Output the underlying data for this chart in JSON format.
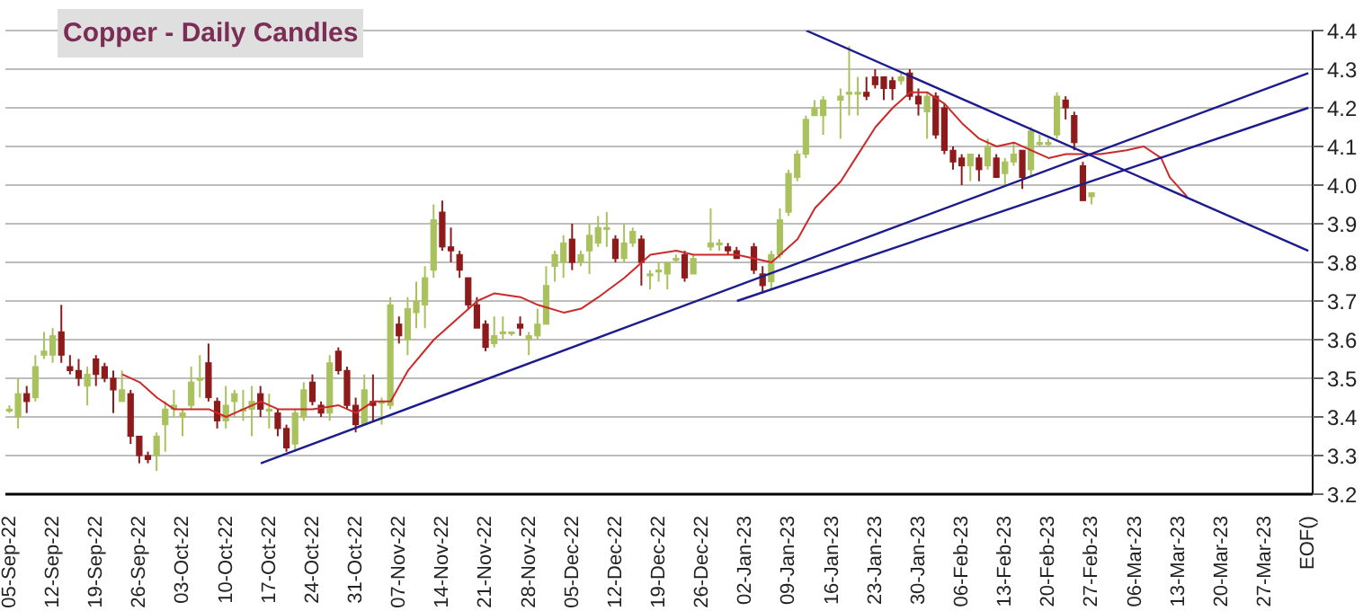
{
  "chart_data": {
    "type": "candlestick",
    "title": "Copper - Daily Candles",
    "categories": [
      "05-Sep-22",
      null,
      null,
      null,
      null,
      "12-Sep-22",
      null,
      null,
      null,
      null,
      "19-Sep-22",
      null,
      null,
      null,
      null,
      "26-Sep-22",
      null,
      null,
      null,
      null,
      "03-Oct-22",
      null,
      null,
      null,
      null,
      "10-Oct-22",
      null,
      null,
      null,
      null,
      "17-Oct-22",
      null,
      null,
      null,
      null,
      "24-Oct-22",
      null,
      null,
      null,
      null,
      "31-Oct-22",
      null,
      null,
      null,
      null,
      "07-Nov-22",
      null,
      null,
      null,
      null,
      "14-Nov-22",
      null,
      null,
      null,
      null,
      "21-Nov-22",
      null,
      null,
      null,
      null,
      "28-Nov-22",
      null,
      null,
      null,
      null,
      "05-Dec-22",
      null,
      null,
      null,
      null,
      "12-Dec-22",
      null,
      null,
      null,
      null,
      "19-Dec-22",
      null,
      null,
      null,
      null,
      "26-Dec-22",
      null,
      null,
      null,
      null,
      "02-Jan-23",
      null,
      null,
      null,
      null,
      "09-Jan-23",
      null,
      null,
      null,
      null,
      "16-Jan-23",
      null,
      null,
      null,
      null,
      "23-Jan-23",
      null,
      null,
      null,
      null,
      "30-Jan-23",
      null,
      null,
      null,
      null,
      "06-Feb-23",
      null,
      null,
      null,
      null,
      "13-Feb-23",
      null,
      null,
      null,
      null,
      "20-Feb-23",
      null,
      null,
      null,
      null,
      "27-Feb-23",
      null,
      null,
      null,
      null,
      "06-Mar-23",
      null,
      null,
      null,
      null,
      "13-Mar-23",
      null,
      null,
      null,
      null,
      "20-Mar-23",
      null,
      null,
      null,
      null,
      "27-Mar-23",
      null,
      null,
      null,
      null,
      "EOF()"
    ],
    "ohlc": [
      [
        3.42,
        3.43,
        3.41,
        3.42
      ],
      [
        3.4,
        3.5,
        3.37,
        3.46
      ],
      [
        3.46,
        3.48,
        3.41,
        3.44
      ],
      [
        3.45,
        3.56,
        3.44,
        3.53
      ],
      [
        3.56,
        3.62,
        3.55,
        3.57
      ],
      [
        3.56,
        3.63,
        3.54,
        3.61
      ],
      [
        3.62,
        3.69,
        3.54,
        3.56
      ],
      [
        3.53,
        3.56,
        3.51,
        3.52
      ],
      [
        3.52,
        3.55,
        3.48,
        3.5
      ],
      [
        3.48,
        3.53,
        3.43,
        3.51
      ],
      [
        3.55,
        3.56,
        3.48,
        3.51
      ],
      [
        3.53,
        3.54,
        3.49,
        3.5
      ],
      [
        3.5,
        3.52,
        3.41,
        3.47
      ],
      [
        3.44,
        3.52,
        3.44,
        3.47
      ],
      [
        3.46,
        3.47,
        3.33,
        3.35
      ],
      [
        3.35,
        3.35,
        3.28,
        3.3
      ],
      [
        3.3,
        3.31,
        3.28,
        3.29
      ],
      [
        3.3,
        3.36,
        3.26,
        3.35
      ],
      [
        3.38,
        3.44,
        3.31,
        3.42
      ],
      [
        3.42,
        3.47,
        3.4,
        3.43
      ],
      [
        3.4,
        3.42,
        3.35,
        3.41
      ],
      [
        3.43,
        3.53,
        3.42,
        3.49
      ],
      [
        3.5,
        3.56,
        3.45,
        3.5
      ],
      [
        3.54,
        3.59,
        3.44,
        3.45
      ],
      [
        3.44,
        3.45,
        3.37,
        3.39
      ],
      [
        3.39,
        3.48,
        3.37,
        3.43
      ],
      [
        3.44,
        3.47,
        3.4,
        3.46
      ],
      [
        3.42,
        3.47,
        3.39,
        3.42
      ],
      [
        3.42,
        3.48,
        3.35,
        3.44
      ],
      [
        3.46,
        3.48,
        3.4,
        3.42
      ],
      [
        3.42,
        3.46,
        3.37,
        3.42
      ],
      [
        3.41,
        3.42,
        3.35,
        3.37
      ],
      [
        3.37,
        3.38,
        3.31,
        3.32
      ],
      [
        3.33,
        3.42,
        3.31,
        3.41
      ],
      [
        3.4,
        3.49,
        3.39,
        3.47
      ],
      [
        3.49,
        3.51,
        3.43,
        3.44
      ],
      [
        3.43,
        3.44,
        3.4,
        3.41
      ],
      [
        3.41,
        3.56,
        3.39,
        3.54
      ],
      [
        3.57,
        3.58,
        3.51,
        3.52
      ],
      [
        3.52,
        3.53,
        3.42,
        3.43
      ],
      [
        3.43,
        3.45,
        3.36,
        3.38
      ],
      [
        3.38,
        3.51,
        3.38,
        3.47
      ],
      [
        3.44,
        3.51,
        3.39,
        3.43
      ],
      [
        3.44,
        3.45,
        3.38,
        3.44
      ],
      [
        3.43,
        3.71,
        3.42,
        3.69
      ],
      [
        3.64,
        3.66,
        3.59,
        3.61
      ],
      [
        3.6,
        3.71,
        3.56,
        3.68
      ],
      [
        3.67,
        3.75,
        3.63,
        3.7
      ],
      [
        3.69,
        3.79,
        3.63,
        3.76
      ],
      [
        3.78,
        3.95,
        3.76,
        3.91
      ],
      [
        3.93,
        3.96,
        3.83,
        3.84
      ],
      [
        3.84,
        3.89,
        3.8,
        3.83
      ],
      [
        3.82,
        3.83,
        3.76,
        3.78
      ],
      [
        3.76,
        3.76,
        3.68,
        3.69
      ],
      [
        3.69,
        3.71,
        3.63,
        3.63
      ],
      [
        3.64,
        3.65,
        3.57,
        3.58
      ],
      [
        3.59,
        3.66,
        3.58,
        3.61
      ],
      [
        3.62,
        3.66,
        3.6,
        3.62
      ],
      [
        3.62,
        3.62,
        3.61,
        3.62
      ],
      [
        3.64,
        3.66,
        3.61,
        3.63
      ],
      [
        3.6,
        3.62,
        3.56,
        3.61
      ],
      [
        3.61,
        3.68,
        3.6,
        3.64
      ],
      [
        3.64,
        3.79,
        3.64,
        3.74
      ],
      [
        3.79,
        3.83,
        3.75,
        3.82
      ],
      [
        3.8,
        3.87,
        3.76,
        3.85
      ],
      [
        3.86,
        3.9,
        3.78,
        3.8
      ],
      [
        3.8,
        3.83,
        3.79,
        3.82
      ],
      [
        3.83,
        3.9,
        3.77,
        3.87
      ],
      [
        3.85,
        3.92,
        3.84,
        3.89
      ],
      [
        3.89,
        3.93,
        3.84,
        3.89
      ],
      [
        3.86,
        3.87,
        3.8,
        3.81
      ],
      [
        3.81,
        3.9,
        3.8,
        3.85
      ],
      [
        3.85,
        3.89,
        3.84,
        3.88
      ],
      [
        3.86,
        3.87,
        3.74,
        3.8
      ],
      [
        3.77,
        3.78,
        3.73,
        3.77
      ],
      [
        3.78,
        3.8,
        3.75,
        3.78
      ],
      [
        3.77,
        3.8,
        3.73,
        3.8
      ],
      [
        3.81,
        3.82,
        3.8,
        3.81
      ],
      [
        3.82,
        3.83,
        3.75,
        3.76
      ],
      [
        3.77,
        3.82,
        3.77,
        3.81
      ],
      null,
      [
        3.84,
        3.94,
        3.83,
        3.85
      ],
      [
        3.85,
        3.86,
        3.83,
        3.85
      ],
      [
        3.84,
        3.85,
        3.82,
        3.83
      ],
      [
        3.83,
        3.84,
        3.81,
        3.81
      ],
      null,
      [
        3.84,
        3.85,
        3.77,
        3.78
      ],
      [
        3.77,
        3.79,
        3.72,
        3.74
      ],
      [
        3.75,
        3.83,
        3.73,
        3.82
      ],
      [
        3.82,
        3.94,
        3.81,
        3.91
      ],
      [
        3.93,
        4.04,
        3.92,
        4.03
      ],
      [
        4.02,
        4.09,
        4.01,
        4.08
      ],
      [
        4.08,
        4.18,
        4.07,
        4.17
      ],
      [
        4.18,
        4.22,
        4.18,
        4.2
      ],
      [
        4.18,
        4.23,
        4.13,
        4.22
      ],
      null,
      [
        4.22,
        4.25,
        4.12,
        4.23
      ],
      [
        4.24,
        4.36,
        4.18,
        4.24
      ],
      [
        4.24,
        4.28,
        4.18,
        4.24
      ],
      [
        4.24,
        4.28,
        4.22,
        4.23
      ],
      [
        4.28,
        4.3,
        4.25,
        4.26
      ],
      [
        4.28,
        4.28,
        4.22,
        4.25
      ],
      [
        4.27,
        4.28,
        4.22,
        4.25
      ],
      [
        4.27,
        4.29,
        4.26,
        4.28
      ],
      [
        4.29,
        4.3,
        4.22,
        4.23
      ],
      [
        4.23,
        4.25,
        4.18,
        4.21
      ],
      [
        4.19,
        4.24,
        4.12,
        4.23
      ],
      [
        4.23,
        4.24,
        4.12,
        4.13
      ],
      [
        4.2,
        4.21,
        4.08,
        4.09
      ],
      [
        4.09,
        4.1,
        4.04,
        4.06
      ],
      [
        4.07,
        4.08,
        4.0,
        4.05
      ],
      [
        4.05,
        4.08,
        4.01,
        4.08
      ],
      [
        4.07,
        4.08,
        4.01,
        4.04
      ],
      [
        4.05,
        4.12,
        4.04,
        4.1
      ],
      [
        4.07,
        4.08,
        4.02,
        4.02
      ],
      [
        4.03,
        4.07,
        4.0,
        4.06
      ],
      [
        4.06,
        4.11,
        4.05,
        4.08
      ],
      [
        4.09,
        4.09,
        3.99,
        4.02
      ],
      [
        4.04,
        4.15,
        4.02,
        4.14
      ],
      [
        4.11,
        4.13,
        4.1,
        4.11
      ],
      [
        4.11,
        4.12,
        4.1,
        4.11
      ],
      [
        4.13,
        4.24,
        4.12,
        4.23
      ],
      [
        4.22,
        4.23,
        4.17,
        4.2
      ],
      [
        4.18,
        4.19,
        4.09,
        4.11
      ],
      [
        4.05,
        4.06,
        3.96,
        3.96
      ],
      [
        3.97,
        3.98,
        3.95,
        3.98
      ],
      null,
      null,
      null,
      null,
      null,
      null,
      null,
      null,
      null,
      null,
      null,
      null,
      null,
      null,
      null,
      null,
      null,
      null,
      null,
      null,
      null,
      null,
      null,
      null,
      null
    ],
    "colors": [
      "#a9c25e",
      "#a9c25e",
      "#8e1b1b",
      "#a9c25e",
      "#a9c25e",
      "#a9c25e",
      "#8e1b1b",
      "#8e1b1b",
      "#8e1b1b",
      "#a9c25e",
      "#8e1b1b",
      "#8e1b1b",
      "#8e1b1b",
      "#a9c25e",
      "#8e1b1b",
      "#8e1b1b",
      "#8e1b1b",
      "#a9c25e",
      "#a9c25e",
      "#a9c25e",
      "#a9c25e",
      "#a9c25e",
      "#a9c25e",
      "#8e1b1b",
      "#8e1b1b",
      "#a9c25e",
      "#a9c25e",
      "#a9c25e",
      "#a9c25e",
      "#8e1b1b",
      "#a9c25e",
      "#8e1b1b",
      "#8e1b1b",
      "#a9c25e",
      "#a9c25e",
      "#8e1b1b",
      "#8e1b1b",
      "#a9c25e",
      "#8e1b1b",
      "#8e1b1b",
      "#8e1b1b",
      "#a9c25e",
      "#8e1b1b",
      "#a9c25e",
      "#a9c25e",
      "#8e1b1b",
      "#a9c25e",
      "#a9c25e",
      "#a9c25e",
      "#a9c25e",
      "#8e1b1b",
      "#8e1b1b",
      "#8e1b1b",
      "#8e1b1b",
      "#8e1b1b",
      "#8e1b1b",
      "#a9c25e",
      "#a9c25e",
      "#a9c25e",
      "#8e1b1b",
      "#a9c25e",
      "#a9c25e",
      "#a9c25e",
      "#a9c25e",
      "#a9c25e",
      "#8e1b1b",
      "#a9c25e",
      "#a9c25e",
      "#a9c25e",
      "#a9c25e",
      "#8e1b1b",
      "#a9c25e",
      "#a9c25e",
      "#8e1b1b",
      "#a9c25e",
      "#a9c25e",
      "#a9c25e",
      "#a9c25e",
      "#8e1b1b",
      "#a9c25e",
      null,
      "#a9c25e",
      "#a9c25e",
      "#8e1b1b",
      "#8e1b1b",
      null,
      "#8e1b1b",
      "#8e1b1b",
      "#a9c25e",
      "#a9c25e",
      "#a9c25e",
      "#a9c25e",
      "#a9c25e",
      "#a9c25e",
      "#a9c25e",
      null,
      "#a9c25e",
      "#a9c25e",
      "#a9c25e",
      "#8e1b1b",
      "#8e1b1b",
      "#8e1b1b",
      "#8e1b1b",
      "#a9c25e",
      "#8e1b1b",
      "#8e1b1b",
      "#a9c25e",
      "#8e1b1b",
      "#8e1b1b",
      "#8e1b1b",
      "#8e1b1b",
      "#a9c25e",
      "#8e1b1b",
      "#a9c25e",
      "#8e1b1b",
      "#a9c25e",
      "#a9c25e",
      "#8e1b1b",
      "#a9c25e",
      "#a9c25e",
      "#a9c25e",
      "#a9c25e",
      "#8e1b1b",
      "#8e1b1b",
      "#8e1b1b",
      "#a9c25e",
      null,
      null,
      null,
      null,
      null,
      null,
      null,
      null,
      null,
      null,
      null,
      null,
      null,
      null,
      null,
      null,
      null,
      null,
      null,
      null,
      null,
      null,
      null,
      null,
      null
    ],
    "series": [
      {
        "type": "line",
        "color": "#cc2a2a",
        "values": [
          null,
          null,
          null,
          null,
          null,
          null,
          null,
          null,
          null,
          null,
          null,
          null,
          null,
          3.51,
          null,
          3.49,
          null,
          3.45,
          null,
          3.42,
          null,
          3.42,
          null,
          3.42,
          null,
          3.4,
          null,
          3.42,
          null,
          3.44,
          null,
          3.42,
          null,
          3.42,
          null,
          3.42,
          null,
          null,
          3.43,
          null,
          3.41,
          null,
          3.44,
          null,
          3.44,
          null,
          3.52,
          null,
          null,
          3.6,
          null,
          null,
          3.66,
          null,
          3.7,
          null,
          3.72,
          null,
          null,
          3.71,
          null,
          3.69,
          null,
          null,
          3.67,
          null,
          3.68,
          null,
          3.71,
          null,
          null,
          3.76,
          null,
          null,
          3.82,
          null,
          null,
          3.83,
          null,
          3.82,
          null,
          null,
          3.82,
          null,
          3.82,
          null,
          3.81,
          null,
          3.8,
          null,
          null,
          3.86,
          null,
          3.94,
          null,
          null,
          4.01,
          null,
          4.08,
          null,
          4.15,
          null,
          4.2,
          null,
          4.24,
          null,
          4.24,
          null,
          4.21,
          null,
          4.16,
          null,
          4.12,
          null,
          4.1,
          null,
          4.11,
          null,
          4.09,
          null,
          4.07,
          null,
          4.08,
          null,
          null,
          null,
          4.08,
          null,
          null,
          4.09,
          null,
          4.1,
          null,
          4.07,
          4.02,
          null,
          3.97,
          null,
          null,
          null,
          null,
          null,
          null,
          null,
          null,
          null,
          null,
          null,
          null,
          null,
          null
        ]
      },
      {
        "type": "line",
        "color": "#1c1c8c",
        "values": [
          null,
          null,
          null,
          null,
          null,
          null,
          null,
          null,
          null,
          null,
          null,
          null,
          null,
          null,
          null,
          null,
          null,
          null,
          null,
          null,
          null,
          null,
          null,
          null,
          null,
          null,
          null,
          null,
          null,
          3.28,
          null,
          null,
          null,
          null,
          null,
          null,
          null,
          null,
          null,
          null,
          null,
          null,
          null,
          null,
          null,
          null,
          null,
          null,
          null,
          null,
          null,
          null,
          null,
          null,
          null,
          null,
          null,
          null,
          null,
          null,
          null,
          null,
          null,
          null,
          null,
          null,
          null,
          null,
          null,
          null,
          null,
          null,
          null,
          null,
          null,
          null,
          null,
          null,
          null,
          null,
          null,
          null,
          null,
          null,
          null,
          null,
          null,
          null,
          null,
          null,
          null,
          null,
          null,
          null,
          null,
          null,
          null,
          null,
          null,
          null,
          null,
          null,
          null,
          null,
          null,
          null,
          null,
          null,
          null,
          null,
          null,
          null,
          null,
          null,
          null,
          null,
          null,
          null,
          null,
          null,
          null,
          null,
          null,
          null,
          null,
          null,
          null,
          null,
          null,
          null,
          null,
          null,
          null,
          null,
          null,
          null,
          null,
          null,
          null,
          null,
          null,
          null,
          null,
          null,
          null,
          null,
          null,
          null,
          null,
          null,
          4.29
        ]
      },
      {
        "type": "line",
        "color": "#1c1c8c",
        "values": [
          null,
          null,
          null,
          null,
          null,
          null,
          null,
          null,
          null,
          null,
          null,
          null,
          null,
          null,
          null,
          null,
          null,
          null,
          null,
          null,
          null,
          null,
          null,
          null,
          null,
          null,
          null,
          null,
          null,
          null,
          null,
          null,
          null,
          null,
          null,
          null,
          null,
          null,
          null,
          null,
          null,
          null,
          null,
          null,
          null,
          null,
          null,
          null,
          null,
          null,
          null,
          null,
          null,
          null,
          null,
          null,
          null,
          null,
          null,
          null,
          null,
          null,
          null,
          null,
          null,
          null,
          null,
          null,
          null,
          null,
          null,
          null,
          null,
          null,
          null,
          null,
          null,
          null,
          null,
          null,
          null,
          null,
          null,
          null,
          3.7,
          null,
          null,
          null,
          null,
          null,
          null,
          null,
          null,
          null,
          null,
          null,
          null,
          null,
          null,
          null,
          null,
          null,
          null,
          null,
          null,
          null,
          null,
          null,
          null,
          null,
          null,
          null,
          null,
          null,
          null,
          null,
          null,
          null,
          null,
          null,
          null,
          null,
          null,
          null,
          null,
          null,
          null,
          null,
          null,
          null,
          null,
          null,
          null,
          null,
          null,
          null,
          null,
          null,
          null,
          null,
          null,
          null,
          null,
          null,
          null,
          null,
          null,
          null,
          null,
          null,
          4.2
        ]
      },
      {
        "type": "line",
        "color": "#1c1c8c",
        "values": [
          null,
          null,
          null,
          null,
          null,
          null,
          null,
          null,
          null,
          null,
          null,
          null,
          null,
          null,
          null,
          null,
          null,
          null,
          null,
          null,
          null,
          null,
          null,
          null,
          null,
          null,
          null,
          null,
          null,
          null,
          null,
          null,
          null,
          null,
          null,
          null,
          null,
          null,
          null,
          null,
          null,
          null,
          null,
          null,
          null,
          null,
          null,
          null,
          null,
          null,
          null,
          null,
          null,
          null,
          null,
          null,
          null,
          null,
          null,
          null,
          null,
          null,
          null,
          null,
          null,
          null,
          null,
          null,
          null,
          null,
          null,
          null,
          null,
          null,
          null,
          null,
          null,
          null,
          null,
          null,
          null,
          null,
          null,
          null,
          null,
          null,
          null,
          null,
          null,
          null,
          null,
          null,
          4.4,
          null,
          null,
          null,
          null,
          null,
          null,
          null,
          null,
          null,
          null,
          null,
          null,
          null,
          null,
          null,
          null,
          null,
          null,
          null,
          null,
          null,
          null,
          null,
          null,
          null,
          null,
          null,
          null,
          null,
          null,
          null,
          null,
          null,
          null,
          null,
          null,
          null,
          null,
          null,
          null,
          null,
          null,
          null,
          null,
          null,
          null,
          null,
          null,
          null,
          null,
          null,
          null,
          null,
          null,
          null,
          null,
          null,
          3.83
        ]
      }
    ],
    "ylim": [
      3.2,
      4.4
    ],
    "yticks": [
      3.2,
      3.3,
      3.4,
      3.5,
      3.6,
      3.7,
      3.8,
      3.9,
      {
        "value": 4,
        "label": "4.0"
      },
      4.1,
      4.2,
      4.3,
      4.4
    ],
    "grid": "y"
  }
}
